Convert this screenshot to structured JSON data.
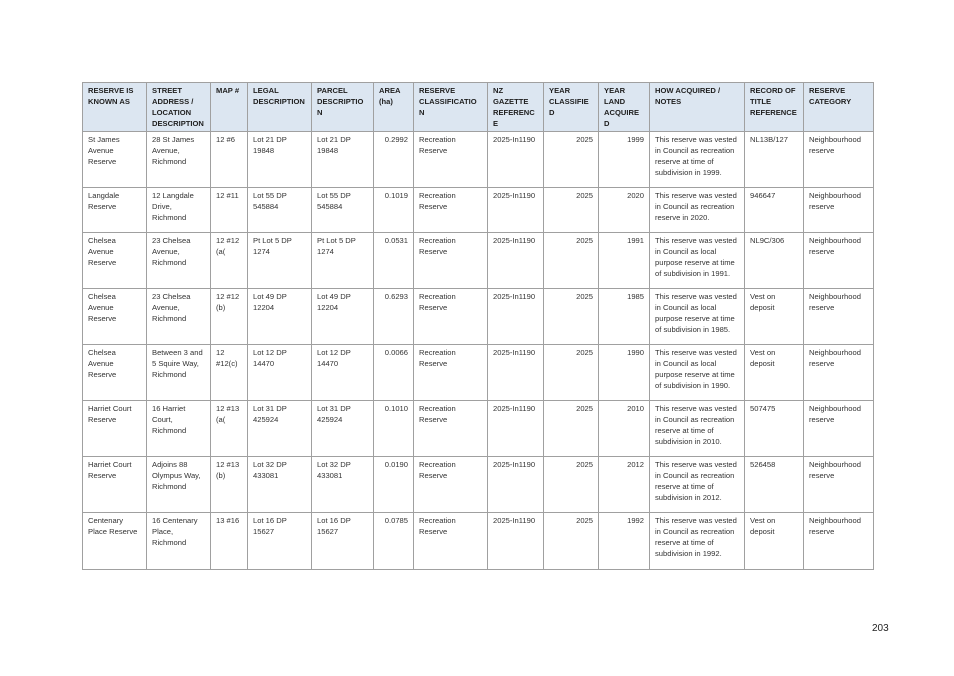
{
  "table": {
    "header": [
      "RESERVE IS KNOWN AS",
      "STREET ADDRESS / LOCATION DESCRIPTION",
      "MAP #",
      "LEGAL DESCRIPTION",
      "PARCEL DESCRIPTION",
      "AREA (ha)",
      "RESERVE CLASSIFICATION",
      "NZ GAZETTE REFERENCE",
      "YEAR CLASSIFIED",
      "YEAR LAND ACQUIRED",
      "HOW ACQUIRED / NOTES",
      "RECORD OF TITLE REFERENCE",
      "RESERVE CATEGORY"
    ],
    "rows": [
      [
        "St James Avenue Reserve",
        "28 St James Avenue, Richmond",
        "12 #6",
        "Lot 21 DP 19848",
        "Lot 21 DP 19848",
        "0.2992",
        "Recreation Reserve",
        "2025-In1190",
        "2025",
        "1999",
        "This reserve was vested in Council as recreation reserve at time of subdivision in 1999.",
        "NL13B/127",
        "Neighbourhood reserve"
      ],
      [
        "Langdale Reserve",
        "12 Langdale Drive, Richmond",
        "12 #11",
        "Lot 55 DP 545884",
        "Lot 55 DP 545884",
        "0.1019",
        "Recreation Reserve",
        "2025-In1190",
        "2025",
        "2020",
        "This reserve was vested in Council as recreation reserve in 2020.",
        "946647",
        "Neighbourhood reserve"
      ],
      [
        "Chelsea Avenue Reserve",
        "23 Chelsea Avenue, Richmond",
        "12 #12 (a(",
        "Pt Lot 5 DP 1274",
        "Pt Lot 5 DP 1274",
        "0.0531",
        "Recreation Reserve",
        "2025-In1190",
        "2025",
        "1991",
        "This reserve was vested in Council as local purpose reserve at time of subdivision in 1991.",
        "NL9C/306",
        "Neighbourhood reserve"
      ],
      [
        "Chelsea Avenue Reserve",
        "23 Chelsea Avenue, Richmond",
        "12 #12 (b)",
        "Lot 49 DP 12204",
        "Lot 49 DP 12204",
        "0.6293",
        "Recreation Reserve",
        "2025-In1190",
        "2025",
        "1985",
        "This reserve was vested in Council as local purpose reserve at time of subdivision in 1985.",
        "Vest on deposit",
        "Neighbourhood reserve"
      ],
      [
        "Chelsea Avenue Reserve",
        "Between 3 and 5 Squire Way, Richmond",
        "12 #12(c)",
        "Lot 12 DP 14470",
        "Lot 12 DP 14470",
        "0.0066",
        "Recreation Reserve",
        "2025-In1190",
        "2025",
        "1990",
        "This reserve was vested in Council as local purpose reserve at time of subdivision in 1990.",
        "Vest on deposit",
        "Neighbourhood reserve"
      ],
      [
        "Harriet Court Reserve",
        "16 Harriet Court, Richmond",
        "12 #13 (a(",
        "Lot 31 DP 425924",
        "Lot 31 DP 425924",
        "0.1010",
        "Recreation Reserve",
        "2025-In1190",
        "2025",
        "2010",
        "This reserve was vested in Council as recreation reserve at time of subdivision in 2010.",
        "507475",
        "Neighbourhood reserve"
      ],
      [
        "Harriet Court Reserve",
        "Adjoins 88 Olympus Way, Richmond",
        "12 #13 (b)",
        "Lot 32 DP 433081",
        "Lot 32 DP 433081",
        "0.0190",
        "Recreation Reserve",
        "2025-In1190",
        "2025",
        "2012",
        "This reserve was vested in Council as recreation reserve at time of subdivision in 2012.",
        "526458",
        "Neighbourhood reserve"
      ],
      [
        "Centenary Place Reserve",
        "16 Centenary Place, Richmond",
        "13 #16",
        "Lot 16 DP 15627",
        "Lot 16 DP 15627",
        "0.0785",
        "Recreation Reserve",
        "2025-In1190",
        "2025",
        "1992",
        "This reserve was vested in Council as recreation reserve at time of subdivision in 1992.",
        "Vest on deposit",
        "Neighbourhood reserve"
      ]
    ]
  },
  "page_number": "203"
}
